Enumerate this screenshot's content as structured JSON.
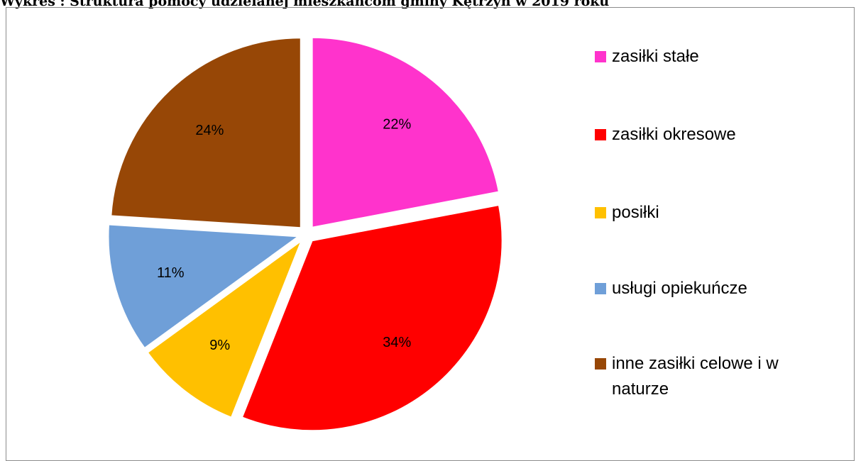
{
  "chart_data": {
    "type": "pie",
    "title": "Wykres : Struktura pomocy udzielanej mieszkańcom gminy Kętrzyn w 2019 roku",
    "categories": [
      "zasiłki stałe",
      "zasiłki okresowe",
      "posiłki",
      "usługi opiekuńcze",
      "inne zasiłki celowe i w naturze"
    ],
    "values": [
      22,
      34,
      9,
      11,
      24
    ],
    "value_labels": [
      "22%",
      "34%",
      "9%",
      "11%",
      "24%"
    ],
    "colors": [
      "#ff33cc",
      "#ff0000",
      "#ffc000",
      "#6f9fd8",
      "#974706"
    ],
    "legend": "right"
  }
}
